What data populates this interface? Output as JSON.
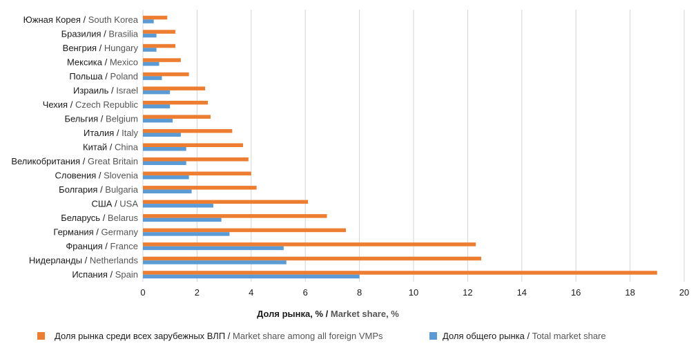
{
  "chart_data": {
    "type": "bar",
    "orientation": "horizontal",
    "categories": [
      {
        "ru": "Южная Корея",
        "en": "South Korea"
      },
      {
        "ru": "Бразилия",
        "en": "Brasilia"
      },
      {
        "ru": "Венгрия",
        "en": "Hungary"
      },
      {
        "ru": "Мексика",
        "en": "Mexico"
      },
      {
        "ru": "Польша",
        "en": "Poland"
      },
      {
        "ru": "Израиль",
        "en": "Israel"
      },
      {
        "ru": "Чехия",
        "en": "Czech Republic"
      },
      {
        "ru": "Бельгия",
        "en": "Belgium"
      },
      {
        "ru": "Италия",
        "en": "Italy"
      },
      {
        "ru": "Китай",
        "en": "China"
      },
      {
        "ru": "Великобритания",
        "en": "Great Britain"
      },
      {
        "ru": "Словения",
        "en": "Slovenia"
      },
      {
        "ru": "Болгария",
        "en": "Bulgaria"
      },
      {
        "ru": "США",
        "en": "USA"
      },
      {
        "ru": "Беларусь",
        "en": "Belarus"
      },
      {
        "ru": "Германия",
        "en": "Germany"
      },
      {
        "ru": "Франция",
        "en": "France"
      },
      {
        "ru": "Нидерланды",
        "en": "Netherlands"
      },
      {
        "ru": "Испания",
        "en": "Spain"
      }
    ],
    "series": [
      {
        "name_ru": "Доля рынка среди всех зарубежных ВЛП",
        "name_en": "Market share among all foreign VMPs",
        "color": "#ed7d31",
        "values": [
          0.9,
          1.2,
          1.2,
          1.4,
          1.7,
          2.3,
          2.4,
          2.5,
          3.3,
          3.7,
          3.9,
          4.0,
          4.2,
          6.1,
          6.8,
          7.5,
          12.3,
          12.5,
          19.0
        ]
      },
      {
        "name_ru": "Доля общего рынка",
        "name_en": "Total market share",
        "color": "#5b9bd5",
        "values": [
          0.4,
          0.5,
          0.5,
          0.6,
          0.7,
          1.0,
          1.0,
          1.1,
          1.4,
          1.6,
          1.6,
          1.7,
          1.8,
          2.6,
          2.9,
          3.2,
          5.2,
          5.3,
          8.0
        ]
      }
    ],
    "xlabel": {
      "ru": "Доля рынка, %",
      "en": "Market share, %"
    },
    "xlim": [
      0,
      20
    ],
    "xticks": [
      "0",
      "2",
      "4",
      "6",
      "8",
      "10",
      "12",
      "14",
      "16",
      "18",
      "20"
    ],
    "grid": "vertical",
    "legend_position": "bottom"
  }
}
